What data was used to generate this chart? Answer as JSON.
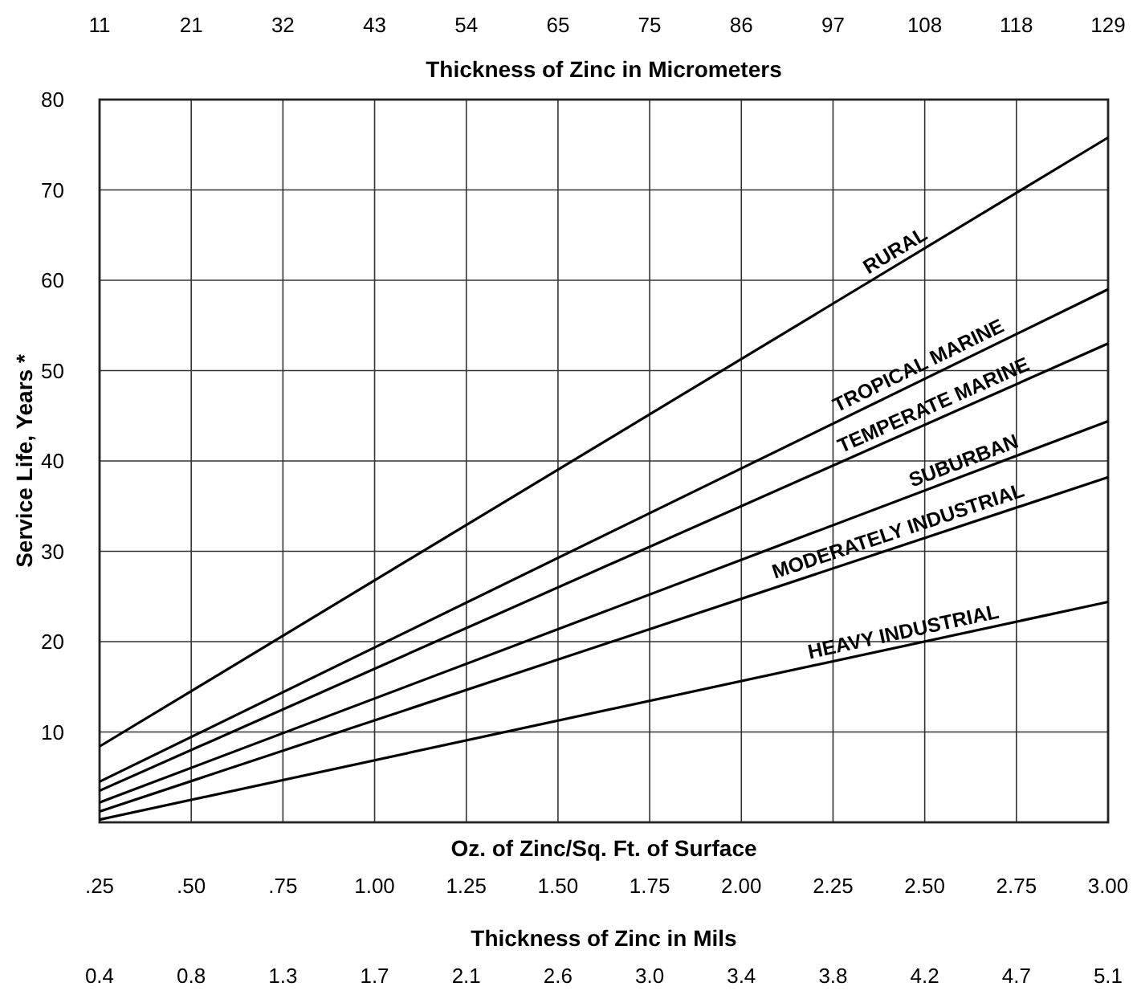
{
  "chart_data": {
    "type": "line",
    "xlabel": "Oz. of Zinc/Sq. Ft. of Surface",
    "ylabel": "Service Life, Years *",
    "x2label": "Thickness of Zinc in Micrometers",
    "xlim": [
      0.25,
      3.0
    ],
    "xticks": [
      {
        "value": 0.25,
        "label": ".25"
      },
      {
        "value": 0.5,
        "label": ".50"
      },
      {
        "value": 0.75,
        "label": ".75"
      },
      {
        "value": 1.0,
        "label": "1.00"
      },
      {
        "value": 1.25,
        "label": "1.25"
      },
      {
        "value": 1.5,
        "label": "1.50"
      },
      {
        "value": 1.75,
        "label": "1.75"
      },
      {
        "value": 2.0,
        "label": "2.00"
      },
      {
        "value": 2.25,
        "label": "2.25"
      },
      {
        "value": 2.5,
        "label": "2.50"
      },
      {
        "value": 2.75,
        "label": "2.75"
      },
      {
        "value": 3.0,
        "label": "3.00"
      }
    ],
    "x2lim": [
      10.75,
      129
    ],
    "x2ticks": [
      {
        "value": 10.75,
        "label": "11"
      },
      {
        "value": 21.5,
        "label": "21"
      },
      {
        "value": 32.25,
        "label": "32"
      },
      {
        "value": 43,
        "label": "43"
      },
      {
        "value": 53.75,
        "label": "54"
      },
      {
        "value": 64.5,
        "label": "65"
      },
      {
        "value": 75.25,
        "label": "75"
      },
      {
        "value": 86,
        "label": "86"
      },
      {
        "value": 96.75,
        "label": "97"
      },
      {
        "value": 107.5,
        "label": "108"
      },
      {
        "value": 118.25,
        "label": "118"
      },
      {
        "value": 129,
        "label": "129"
      }
    ],
    "ylim": [
      0,
      80
    ],
    "yticks": [
      10,
      20,
      30,
      40,
      50,
      60,
      70,
      80
    ],
    "grid": true,
    "x": [
      0.25,
      3.0
    ],
    "series": [
      {
        "color": "#000000",
        "values": [
          8.4,
          75.8
        ]
      },
      {
        "color": "#000000",
        "values": [
          4.5,
          59
        ]
      },
      {
        "color": "#000000",
        "values": [
          3.5,
          53
        ]
      },
      {
        "color": "#000000",
        "values": [
          2.2,
          44.4
        ]
      },
      {
        "color": "#000000",
        "values": [
          1.2,
          38.2
        ]
      },
      {
        "color": "#000000",
        "values": [
          0.3,
          24.4
        ]
      }
    ],
    "annotations": [
      "Thickness of Zinc in Mils",
      "0.4",
      "0.8",
      "1.3",
      "1.7",
      "2.1",
      "2.6",
      "3.0",
      "3.4",
      "3.8",
      "4.2",
      "4.7",
      "5.1",
      {
        "text": "RURAL",
        "x": 2.44,
        "y": 61.9
      },
      {
        "text": "TROPICAL MARINE",
        "x": 2.5,
        "y": 49.1
      },
      {
        "text": "TEMPERATE MARINE",
        "x": 2.54,
        "y": 44.7
      },
      {
        "text": "SUBURBAN",
        "x": 2.62,
        "y": 38.5
      },
      {
        "text": "MODERATELY INDUSTRIAL",
        "x": 2.44,
        "y": 30.7
      },
      {
        "text": "HEAVY INDUSTRIAL",
        "x": 2.45,
        "y": 19.5
      }
    ]
  }
}
